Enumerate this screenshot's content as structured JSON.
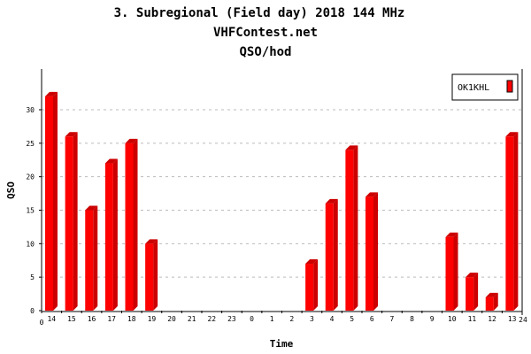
{
  "chart_data": {
    "type": "bar",
    "title": "3. Subregional (Field day) 2018 144 MHz",
    "subtitle": "VHFContest.net",
    "subtitle2": "QSO/hod",
    "xlabel": "Time",
    "ylabel": "QSO",
    "ylim": [
      0,
      36
    ],
    "yticks": [
      "0",
      "5",
      "10",
      "15",
      "20",
      "25",
      "30"
    ],
    "x_start_label": "0",
    "x_end_label": "24",
    "categories": [
      "14",
      "15",
      "16",
      "17",
      "18",
      "19",
      "20",
      "21",
      "22",
      "23",
      "0",
      "1",
      "2",
      "3",
      "4",
      "5",
      "6",
      "7",
      "8",
      "9",
      "10",
      "11",
      "12",
      "13"
    ],
    "series": [
      {
        "name": "OK1KHL",
        "color": "#ff0000",
        "values": [
          32,
          26,
          15,
          22,
          25,
          10,
          0,
          0,
          0,
          0,
          0,
          0,
          0,
          7,
          16,
          24,
          17,
          0,
          0,
          0,
          11,
          5,
          2,
          26
        ]
      }
    ],
    "grid": true,
    "legend": "top-right"
  }
}
